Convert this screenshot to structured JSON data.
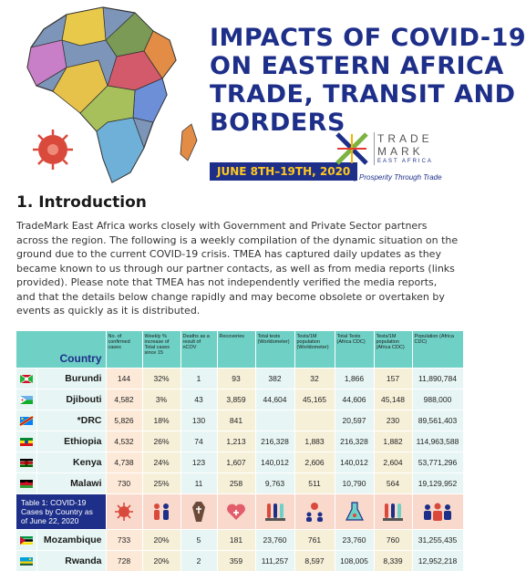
{
  "header": {
    "title_lines": [
      "IMPACTS OF COVID-19",
      "ON EASTERN AFRICA",
      "TRADE, TRANSIT AND",
      "BORDERS"
    ],
    "date_range": "JUNE 8TH–19TH, 2020",
    "logo": {
      "name_line1": "TRADE",
      "name_line2": "MARK",
      "region": "EAST AFRICA",
      "tagline": "Growing Prosperity Through Trade"
    }
  },
  "intro": {
    "heading": "1. Introduction",
    "body": "TradeMark East Africa works closely with Government and Private Sector partners across the region. The following is a weekly compilation of the dynamic situation on the ground due to the current COVID-19 crisis. TMEA has captured daily updates as they became known to us through our partner contacts, as well as from media reports (links provided). Please note that TMEA has not independently verified the media reports, and that the details below change rapidly and may become obsolete or overtaken by events as quickly as it is distributed."
  },
  "table": {
    "country_header": "Country",
    "columns": [
      "No. of confirmed cases",
      "Weekly % increase of Total cases since 15",
      "Deaths as a result of nCOV",
      "Recoveries",
      "Total tests (Worldometer)",
      "Tests/1M population (Worldometer)",
      "Total Tests (Africa CDC)",
      "Tests/1M population (Africa CDC)",
      "Population (Africa CDC)"
    ],
    "rows_top": [
      {
        "country": "Burundi",
        "values": [
          "144",
          "32%",
          "1",
          "93",
          "382",
          "32",
          "1,866",
          "157",
          "11,890,784"
        ]
      },
      {
        "country": "Djibouti",
        "values": [
          "4,582",
          "3%",
          "43",
          "3,859",
          "44,604",
          "45,165",
          "44,606",
          "45,148",
          "988,000"
        ]
      },
      {
        "country": "*DRC",
        "values": [
          "5,826",
          "18%",
          "130",
          "841",
          "",
          "",
          "20,597",
          "230",
          "89,561,403"
        ]
      },
      {
        "country": "Ethiopia",
        "values": [
          "4,532",
          "26%",
          "74",
          "1,213",
          "216,328",
          "1,883",
          "216,328",
          "1,882",
          "114,963,588"
        ]
      },
      {
        "country": "Kenya",
        "values": [
          "4,738",
          "24%",
          "123",
          "1,607",
          "140,012",
          "2,606",
          "140,012",
          "2,604",
          "53,771,296"
        ]
      },
      {
        "country": "Malawi",
        "values": [
          "730",
          "25%",
          "11",
          "258",
          "9,763",
          "511",
          "10,790",
          "564",
          "19,129,952"
        ]
      }
    ],
    "caption": "Table 1: COVID-19 Cases by Country as of June 22, 2020",
    "rows_bottom": [
      {
        "country": "Mozambique",
        "values": [
          "733",
          "20%",
          "5",
          "181",
          "23,760",
          "761",
          "23,760",
          "760",
          "31,255,435"
        ]
      },
      {
        "country": "Rwanda",
        "values": [
          "728",
          "20%",
          "2",
          "359",
          "111,257",
          "8,597",
          "108,005",
          "8,339",
          "12,952,218"
        ]
      }
    ],
    "icons": [
      "virus-icon",
      "people-icon",
      "coffin-icon",
      "heart-icon",
      "test-tubes-icon",
      "people-virus-icon",
      "flask-icon",
      "test-tubes-icon",
      "crowd-icon"
    ]
  },
  "colors": {
    "navy": "#1e2f8a",
    "teal": "#6fd0c5",
    "yellow": "#ffc81e",
    "virus_red": "#d94a3d"
  }
}
